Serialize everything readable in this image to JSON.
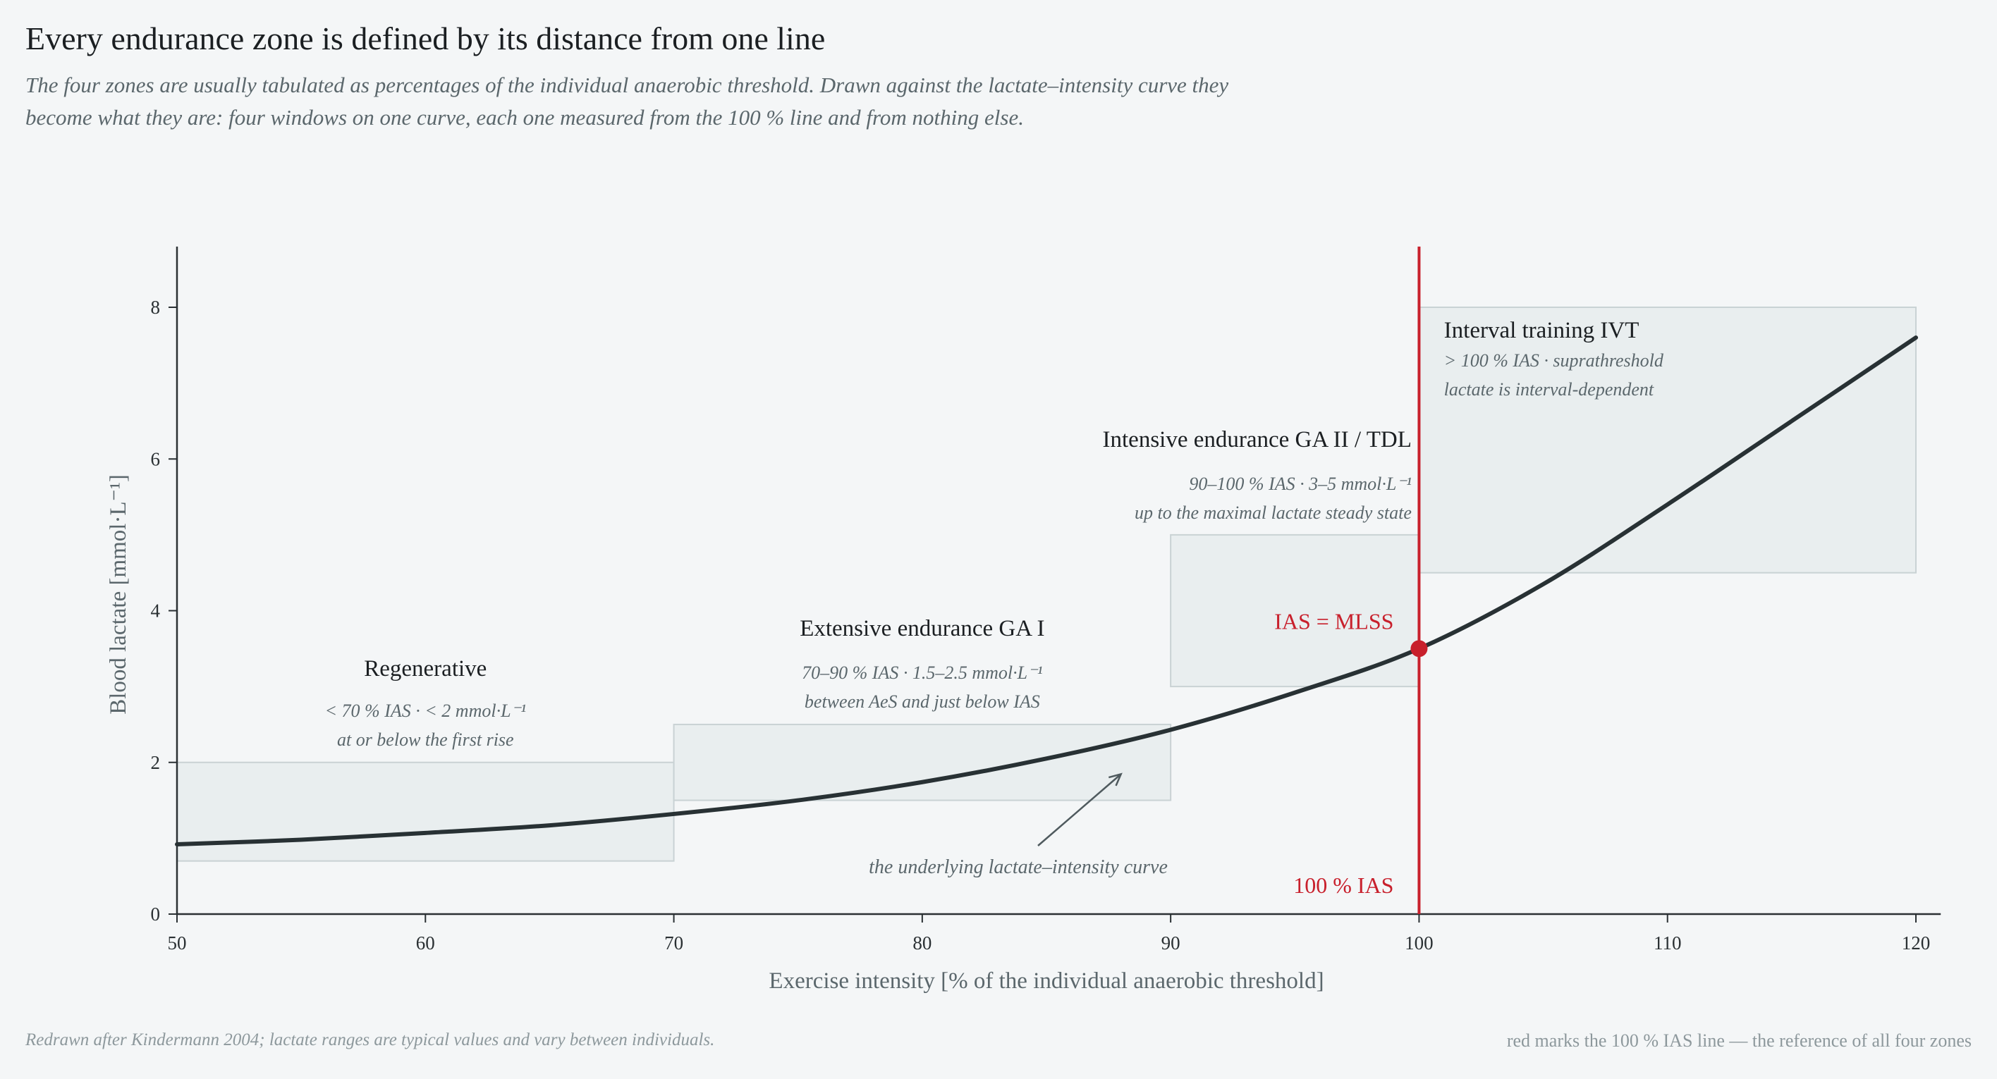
{
  "title": "Every endurance zone is defined by its distance from one line",
  "subtitle": "The four zones are usually tabulated as percentages of the individual anaerobic threshold. Drawn against the lactate–intensity curve they become what they are: four windows on one curve, each one measured from the 100 % line and from nothing else.",
  "footer": {
    "source": "Redrawn after Kindermann 2004; lactate ranges are typical values and vary between individuals.",
    "note": "red marks the 100 % IAS line — the reference of all four zones"
  },
  "colors": {
    "curve": "#283134",
    "reference": "#c8202c",
    "zone_fill": "#e9eeef",
    "zone_stroke": "#c9d2d4",
    "label_muted": "#5b676c"
  },
  "chart_data": {
    "type": "line",
    "xlabel": "Exercise intensity  [% of the individual anaerobic threshold]",
    "ylabel": "Blood lactate  [mmol·L⁻¹]",
    "xlim": [
      50,
      121
    ],
    "ylim": [
      0,
      8.8
    ],
    "x_ticks": [
      50,
      60,
      70,
      80,
      90,
      100,
      110,
      120
    ],
    "y_ticks": [
      0,
      2,
      4,
      6,
      8
    ],
    "grid": false,
    "series": [
      {
        "points": [
          [
            50,
            0.92
          ],
          [
            55,
            0.98
          ],
          [
            60,
            1.07
          ],
          [
            65,
            1.17
          ],
          [
            70,
            1.32
          ],
          [
            75,
            1.5
          ],
          [
            80,
            1.74
          ],
          [
            85,
            2.05
          ],
          [
            90,
            2.43
          ],
          [
            95,
            2.92
          ],
          [
            100,
            3.5
          ],
          [
            105,
            4.35
          ],
          [
            110,
            5.4
          ],
          [
            115,
            6.5
          ],
          [
            120,
            7.6
          ]
        ]
      }
    ],
    "reference": {
      "x": 100,
      "y": 3.5,
      "label_line": "100 % IAS",
      "label_point": "IAS = MLSS"
    },
    "zones": [
      {
        "name": "Regenerative",
        "x_range": [
          50,
          70
        ],
        "y_range": [
          0.7,
          2.0
        ],
        "detail": "< 70 % IAS   ·   < 2 mmol·L⁻¹",
        "note": "at or below the first rise"
      },
      {
        "name": "Extensive endurance  GA I",
        "x_range": [
          70,
          90
        ],
        "y_range": [
          1.5,
          2.5
        ],
        "detail": "70–90 % IAS   ·   1.5–2.5 mmol·L⁻¹",
        "note": "between AeS and just below IAS"
      },
      {
        "name": "Intensive endurance  GA II / TDL",
        "x_range": [
          90,
          100
        ],
        "y_range": [
          3.0,
          5.0
        ],
        "detail": "90–100 % IAS   ·   3–5 mmol·L⁻¹",
        "note": "up to the maximal lactate steady state"
      },
      {
        "name": "Interval training  IVT",
        "x_range": [
          100,
          120
        ],
        "y_range": [
          4.5,
          8.0
        ],
        "detail": "> 100 % IAS   ·   suprathreshold",
        "note": "lactate is interval-dependent"
      }
    ],
    "annotations": [
      {
        "text": "the underlying lactate–intensity curve",
        "points_to": [
          88,
          2.05
        ]
      }
    ]
  }
}
